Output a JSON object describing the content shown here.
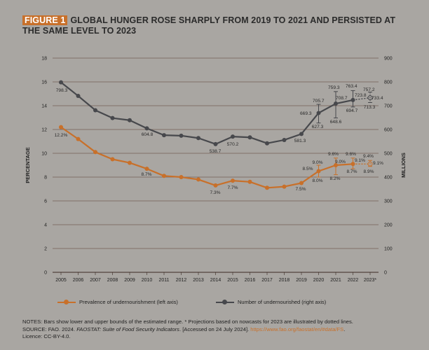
{
  "header": {
    "figure_label": "FIGURE 1",
    "title": "GLOBAL HUNGER ROSE SHARPLY FROM 2019 TO 2021 AND PERSISTED AT THE SAME LEVEL TO 2023"
  },
  "colors": {
    "background": "#a9a6a2",
    "pou_series": "#c8702a",
    "nou_series": "#47484c",
    "gridline": "#5a3a2e",
    "accent": "#c8702a"
  },
  "chart_data": {
    "type": "line",
    "title": "GLOBAL HUNGER ROSE SHARPLY FROM 2019 TO 2021 AND PERSISTED AT THE SAME LEVEL TO 2023",
    "categories": [
      "2005",
      "2006",
      "2007",
      "2008",
      "2009",
      "2010",
      "2011",
      "2012",
      "2013",
      "2014",
      "2015",
      "2016",
      "2017",
      "2018",
      "2019",
      "2020",
      "2021",
      "2022",
      "2023*"
    ],
    "ylabel_left": "PERCENTAGE",
    "ylabel_right": "MILLIONS",
    "ylim_left": [
      0,
      18
    ],
    "ylim_right": [
      0,
      900
    ],
    "yticks_left": [
      "0",
      "2",
      "4",
      "6",
      "8",
      "10",
      "12",
      "14",
      "16",
      "18"
    ],
    "yticks_right": [
      "0",
      "100",
      "200",
      "300",
      "400",
      "500",
      "600",
      "700",
      "800",
      "900"
    ],
    "grid": true,
    "series": [
      {
        "name": "Prevalence of undernourishment (left axis)",
        "axis": "left",
        "values": [
          12.2,
          11.2,
          10.1,
          9.5,
          9.2,
          8.7,
          8.1,
          8.0,
          7.8,
          7.3,
          7.7,
          7.6,
          7.1,
          7.2,
          7.5,
          8.5,
          9.0,
          9.1,
          9.1
        ],
        "error_bars": [
          {
            "year": "2020",
            "low": 8.0,
            "high": 9.0
          },
          {
            "year": "2021",
            "low": 8.2,
            "high": 9.6
          },
          {
            "year": "2022",
            "low": 8.7,
            "high": 9.6
          },
          {
            "year": "2023*",
            "low": 8.9,
            "high": 9.4
          }
        ]
      },
      {
        "name": "Number of undernourished (right axis)",
        "axis": "right",
        "values": [
          798.3,
          741,
          681,
          648,
          639,
          604.8,
          576,
          574,
          564,
          538.7,
          570.2,
          567,
          542,
          556,
          581.3,
          669.3,
          708.7,
          723.8,
          733.4
        ],
        "error_bars": [
          {
            "year": "2020",
            "low": 627.3,
            "high": 705.7
          },
          {
            "year": "2021",
            "low": 648.6,
            "high": 759.3
          },
          {
            "year": "2022",
            "low": 694.7,
            "high": 763.4
          },
          {
            "year": "2023*",
            "low": 713.3,
            "high": 757.2
          }
        ]
      }
    ],
    "annotations_pou": [
      "12.2%",
      "8.7%",
      "7.3%",
      "7.7%",
      "7.5%",
      "8.0%",
      "9.0%",
      "8.5%",
      "9.0%",
      "9.6%",
      "8.2%",
      "9.6%",
      "9.1%",
      "8.7%",
      "9.4%",
      "9.1%",
      "8.9%"
    ],
    "annotations_nou": [
      "798.3",
      "604.8",
      "538.7",
      "570.2",
      "581.3",
      "669.3",
      "627.3",
      "705.7",
      "759.3",
      "708.7",
      "648.6",
      "763.4",
      "723.8",
      "694.7",
      "757.2",
      "733.4",
      "713.3"
    ]
  },
  "legend": {
    "pou_label": "Prevalence of undernourishment (left axis)",
    "nou_label": "Number of undernourished (right axis)"
  },
  "notes": {
    "line1": "NOTES: Bars show lower and upper bounds of the estimated range. * Projections based on nowcasts for 2023 are illustrated by dotted lines.",
    "source_prefix": "SOURCE: FAO. 2024. ",
    "source_title": "FAOSTAT: Suite of Food Security Indicators",
    "source_mid": ". [Accessed on 24 July 2024]. ",
    "source_url": "https://www.fao.org/faostat/en/#data/FS",
    "source_end": ".",
    "licence": "Licence: CC-BY-4.0."
  }
}
